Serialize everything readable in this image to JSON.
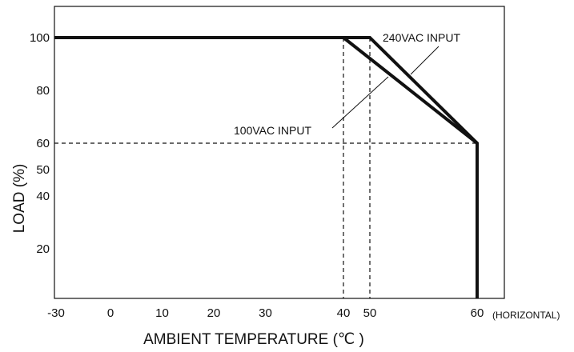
{
  "chart_data": {
    "type": "line",
    "title": "",
    "xlabel": "AMBIENT TEMPERATURE (℃ )",
    "xlabel_suffix": "(HORIZONTAL)",
    "ylabel": "LOAD (%)",
    "x_ticks": [
      {
        "value": -30,
        "label": "-30"
      },
      {
        "value": 0,
        "label": "0"
      },
      {
        "value": 10,
        "label": "10"
      },
      {
        "value": 20,
        "label": "20"
      },
      {
        "value": 30,
        "label": "30"
      },
      {
        "value": 40,
        "label": "40"
      },
      {
        "value": 50,
        "label": "50"
      },
      {
        "value": 60,
        "label": "60"
      }
    ],
    "y_ticks": [
      {
        "value": 100,
        "label": "100"
      },
      {
        "value": 80,
        "label": "80"
      },
      {
        "value": 60,
        "label": "60"
      },
      {
        "value": 50,
        "label": "50"
      },
      {
        "value": 40,
        "label": "40"
      },
      {
        "value": 20,
        "label": "20"
      }
    ],
    "series": [
      {
        "name": "240VAC INPUT",
        "points": [
          [
            -30,
            100
          ],
          [
            50,
            100
          ],
          [
            60,
            60
          ],
          [
            60,
            0
          ]
        ]
      },
      {
        "name": "100VAC INPUT",
        "points": [
          [
            40,
            100
          ],
          [
            60,
            60
          ]
        ]
      }
    ],
    "reference_lines": [
      {
        "axis": "x",
        "value": 40,
        "style": "dashed"
      },
      {
        "axis": "x",
        "value": 50,
        "style": "dashed"
      },
      {
        "axis": "y",
        "value": 60,
        "style": "dashed"
      }
    ],
    "grid": false,
    "legend": "none"
  }
}
